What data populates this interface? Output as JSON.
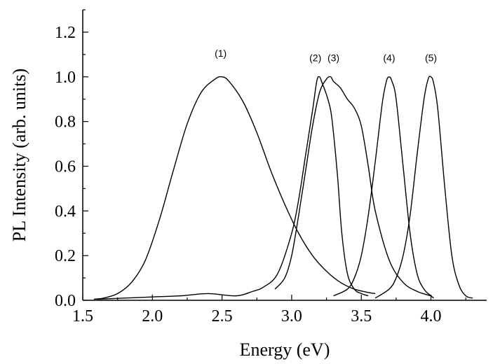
{
  "chart_data": {
    "type": "line",
    "xlabel": "Energy (eV)",
    "ylabel": "PL Intensity (arb. units)",
    "xlim": [
      1.5,
      4.4
    ],
    "ylim": [
      0.0,
      1.3
    ],
    "x_ticks": [
      "1.5",
      "2.0",
      "2.5",
      "3.0",
      "3.5",
      "4.0"
    ],
    "y_ticks": [
      "0.0",
      "0.2",
      "0.4",
      "0.6",
      "0.8",
      "1.0",
      "1.2"
    ],
    "grid": false,
    "series": [
      {
        "name": "(1)",
        "label_x": 2.49,
        "label_y": 1.09,
        "x": [
          1.58,
          1.65,
          1.75,
          1.85,
          1.95,
          2.05,
          2.15,
          2.25,
          2.35,
          2.45,
          2.5,
          2.55,
          2.65,
          2.75,
          2.85,
          2.95,
          3.05,
          3.15,
          3.25,
          3.35,
          3.45,
          3.55,
          3.6
        ],
        "y": [
          0.005,
          0.01,
          0.03,
          0.08,
          0.18,
          0.36,
          0.58,
          0.79,
          0.93,
          0.99,
          1.0,
          0.98,
          0.89,
          0.75,
          0.58,
          0.43,
          0.3,
          0.2,
          0.13,
          0.08,
          0.05,
          0.035,
          0.03
        ]
      },
      {
        "name": "(2)",
        "label_x": 3.17,
        "label_y": 1.07,
        "x": [
          1.6,
          1.8,
          2.0,
          2.2,
          2.4,
          2.6,
          2.72,
          2.8,
          2.9,
          3.0,
          3.05,
          3.1,
          3.15,
          3.18,
          3.2,
          3.22,
          3.25,
          3.28,
          3.3,
          3.33,
          3.36,
          3.4,
          3.45,
          3.5,
          3.55
        ],
        "y": [
          0.005,
          0.01,
          0.015,
          0.02,
          0.03,
          0.02,
          0.04,
          0.06,
          0.12,
          0.3,
          0.45,
          0.65,
          0.85,
          0.98,
          1.0,
          0.97,
          0.92,
          0.85,
          0.75,
          0.55,
          0.3,
          0.12,
          0.05,
          0.03,
          0.02
        ]
      },
      {
        "name": "(3)",
        "label_x": 3.3,
        "label_y": 1.07,
        "x": [
          2.88,
          2.95,
          3.0,
          3.05,
          3.1,
          3.15,
          3.2,
          3.25,
          3.28,
          3.3,
          3.35,
          3.4,
          3.45,
          3.5,
          3.55,
          3.6,
          3.7,
          3.8,
          3.9,
          4.0
        ],
        "y": [
          0.05,
          0.1,
          0.2,
          0.38,
          0.58,
          0.78,
          0.93,
          0.99,
          1.0,
          0.98,
          0.95,
          0.9,
          0.86,
          0.78,
          0.6,
          0.4,
          0.18,
          0.08,
          0.04,
          0.02
        ]
      },
      {
        "name": "(4)",
        "label_x": 3.7,
        "label_y": 1.07,
        "x": [
          3.3,
          3.4,
          3.45,
          3.5,
          3.55,
          3.6,
          3.65,
          3.68,
          3.7,
          3.72,
          3.75,
          3.8,
          3.85,
          3.9,
          3.95,
          4.0,
          4.02
        ],
        "y": [
          0.02,
          0.05,
          0.1,
          0.2,
          0.38,
          0.62,
          0.88,
          0.98,
          1.0,
          0.98,
          0.9,
          0.6,
          0.3,
          0.12,
          0.05,
          0.02,
          0.01
        ]
      },
      {
        "name": "(5)",
        "label_x": 4.0,
        "label_y": 1.07,
        "x": [
          3.6,
          3.7,
          3.75,
          3.8,
          3.85,
          3.9,
          3.95,
          3.98,
          4.0,
          4.02,
          4.05,
          4.1,
          4.15,
          4.2,
          4.25,
          4.3
        ],
        "y": [
          0.01,
          0.05,
          0.1,
          0.2,
          0.38,
          0.65,
          0.9,
          0.99,
          1.0,
          0.97,
          0.85,
          0.5,
          0.2,
          0.07,
          0.02,
          0.01
        ]
      }
    ]
  }
}
